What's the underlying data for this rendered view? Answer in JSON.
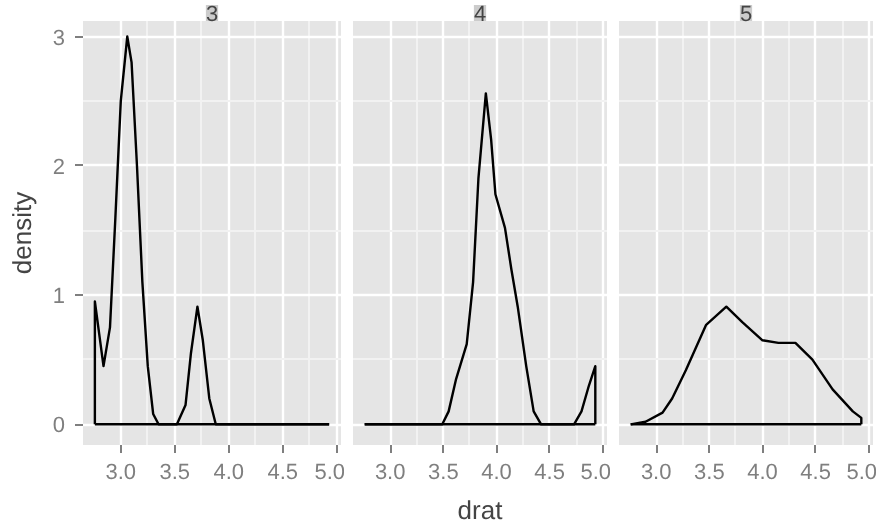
{
  "chart_data": [
    {
      "type": "line",
      "title": "3",
      "ylabel": "density",
      "xlim": [
        2.65,
        5.04
      ],
      "ylim": [
        -0.16,
        3.12
      ],
      "xticks": [
        {
          "value": 3.0,
          "label": "3.0"
        },
        {
          "value": 3.5,
          "label": "3.5"
        },
        {
          "value": 4.0,
          "label": "4.0"
        },
        {
          "value": 4.5,
          "label": "4.5"
        },
        {
          "value": 5.0,
          "label": "5.0"
        }
      ],
      "yticks": [
        0,
        1,
        2,
        3
      ],
      "grid": true,
      "series": [
        {
          "color": "#000000",
          "x": [
            2.76,
            2.76,
            2.8,
            2.84,
            2.9,
            2.95,
            3.0,
            3.06,
            3.1,
            3.15,
            3.2,
            3.25,
            3.3,
            3.35,
            3.52,
            3.6,
            3.65,
            3.71,
            3.76,
            3.82,
            3.88,
            4.93
          ],
          "values": [
            0,
            0.95,
            0.7,
            0.45,
            0.75,
            1.6,
            2.5,
            3.0,
            2.8,
            2.0,
            1.1,
            0.45,
            0.08,
            0,
            0,
            0.15,
            0.55,
            0.91,
            0.65,
            0.2,
            0,
            0
          ]
        },
        {
          "color": "#000000",
          "x": [
            2.76,
            4.93
          ],
          "values": [
            0,
            0
          ]
        }
      ]
    },
    {
      "type": "line",
      "title": "4",
      "xlabel": "drat",
      "xlim": [
        2.65,
        5.04
      ],
      "ylim": [
        -0.16,
        3.12
      ],
      "xticks": [
        {
          "value": 3.0,
          "label": "3.0"
        },
        {
          "value": 3.5,
          "label": "3.5"
        },
        {
          "value": 4.0,
          "label": "4.0"
        },
        {
          "value": 4.5,
          "label": "4.5"
        },
        {
          "value": 5.0,
          "label": "5.0"
        }
      ],
      "yticks": [
        0,
        1,
        2,
        3
      ],
      "grid": true,
      "tick_labels": "x",
      "series": [
        {
          "color": "#000000",
          "x": [
            2.76,
            3.49,
            3.55,
            3.62,
            3.72,
            3.78,
            3.83,
            3.9,
            3.95,
            3.99,
            4.08,
            4.14,
            4.2,
            4.28,
            4.35,
            4.42,
            4.73,
            4.8,
            4.87,
            4.93,
            4.93
          ],
          "values": [
            0,
            0,
            0.1,
            0.35,
            0.62,
            1.1,
            1.9,
            2.56,
            2.2,
            1.78,
            1.52,
            1.2,
            0.91,
            0.45,
            0.1,
            0,
            0,
            0.1,
            0.3,
            0.45,
            0
          ]
        },
        {
          "color": "#000000",
          "x": [
            2.76,
            4.93
          ],
          "values": [
            0,
            0
          ]
        }
      ]
    },
    {
      "type": "line",
      "title": "5",
      "xlim": [
        2.65,
        5.04
      ],
      "ylim": [
        -0.16,
        3.12
      ],
      "xticks": [
        {
          "value": 3.0,
          "label": "3.0"
        },
        {
          "value": 3.5,
          "label": "3.5"
        },
        {
          "value": 4.0,
          "label": "4.0"
        },
        {
          "value": 4.5,
          "label": "4.5"
        },
        {
          "value": 5.0,
          "label": "5.0"
        }
      ],
      "yticks": [
        0,
        1,
        2,
        3
      ],
      "grid": true,
      "tick_labels": "x",
      "series": [
        {
          "color": "#000000",
          "x": [
            2.76,
            2.9,
            3.06,
            3.15,
            3.28,
            3.47,
            3.66,
            3.81,
            4.0,
            4.15,
            4.31,
            4.47,
            4.66,
            4.85,
            4.93,
            4.93
          ],
          "values": [
            0,
            0.02,
            0.09,
            0.2,
            0.42,
            0.77,
            0.91,
            0.79,
            0.65,
            0.63,
            0.63,
            0.5,
            0.27,
            0.1,
            0.05,
            0
          ]
        },
        {
          "color": "#000000",
          "x": [
            2.76,
            4.93
          ],
          "values": [
            0,
            0
          ]
        }
      ]
    }
  ]
}
